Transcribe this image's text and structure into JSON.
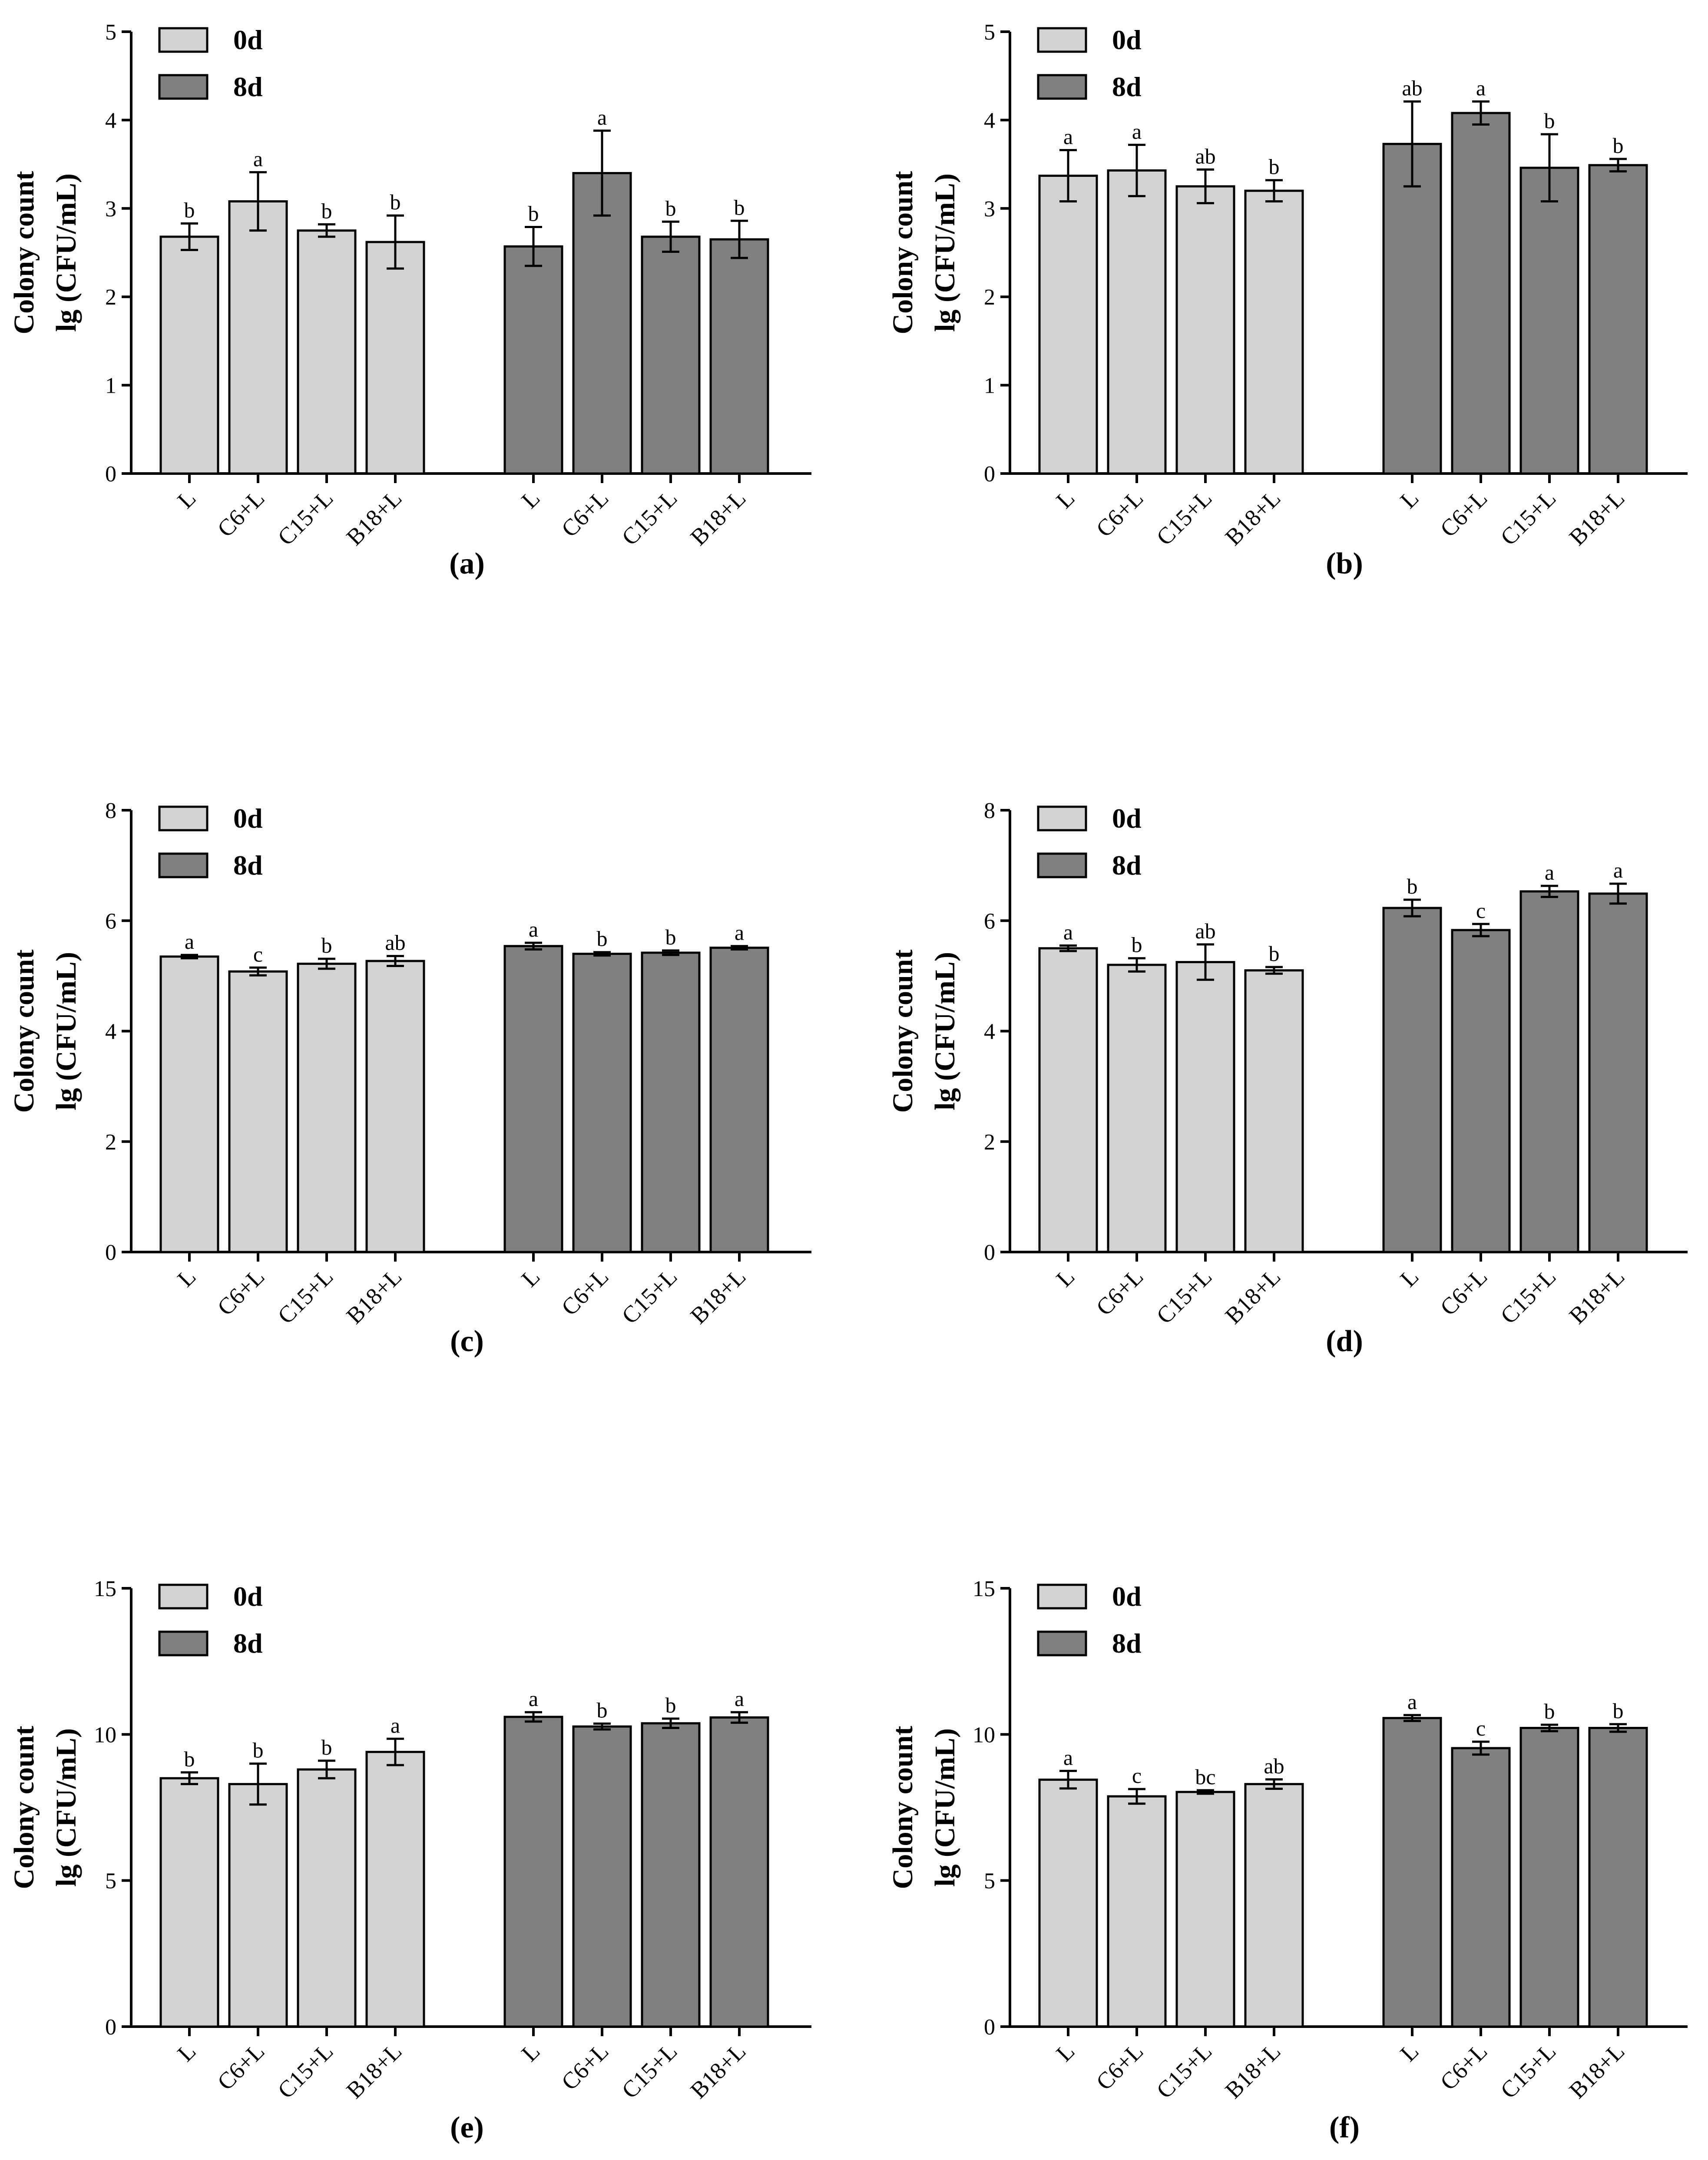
{
  "colors": {
    "day0": "#d3d3d3",
    "day8": "#808080",
    "outline": "#000000"
  },
  "chart_data": [
    {
      "panel": "(a)",
      "type": "bar",
      "ylabel_line1": "Colony count",
      "ylabel_line2": "lg (CFU/mL)",
      "ylim": [
        0,
        5
      ],
      "yticks": [
        "0",
        "1",
        "2",
        "3",
        "4",
        "5"
      ],
      "categories": [
        "L",
        "C6+L",
        "C15+L",
        "B18+L"
      ],
      "legend": [
        "0d",
        "8d"
      ],
      "series": [
        {
          "name": "0d",
          "values": [
            2.68,
            3.08,
            2.75,
            2.62
          ],
          "errors": [
            0.15,
            0.33,
            0.07,
            0.3
          ],
          "labels": [
            "b",
            "a",
            "b",
            "b"
          ]
        },
        {
          "name": "8d",
          "values": [
            2.57,
            3.4,
            2.68,
            2.65
          ],
          "errors": [
            0.22,
            0.48,
            0.17,
            0.21
          ],
          "labels": [
            "b",
            "a",
            "b",
            "b"
          ]
        }
      ]
    },
    {
      "panel": "(b)",
      "type": "bar",
      "ylabel_line1": "Colony count",
      "ylabel_line2": "lg (CFU/mL)",
      "ylim": [
        0,
        5
      ],
      "yticks": [
        "0",
        "1",
        "2",
        "3",
        "4",
        "5"
      ],
      "categories": [
        "L",
        "C6+L",
        "C15+L",
        "B18+L"
      ],
      "legend": [
        "0d",
        "8d"
      ],
      "series": [
        {
          "name": "0d",
          "values": [
            3.37,
            3.43,
            3.25,
            3.2
          ],
          "errors": [
            0.29,
            0.29,
            0.19,
            0.12
          ],
          "labels": [
            "a",
            "a",
            "ab",
            "b"
          ]
        },
        {
          "name": "8d",
          "values": [
            3.73,
            4.08,
            3.46,
            3.49
          ],
          "errors": [
            0.48,
            0.13,
            0.38,
            0.07
          ],
          "labels": [
            "ab",
            "a",
            "b",
            "b"
          ]
        }
      ]
    },
    {
      "panel": "(c)",
      "type": "bar",
      "ylabel_line1": "Colony count",
      "ylabel_line2": "lg (CFU/mL)",
      "ylim": [
        0,
        8
      ],
      "yticks": [
        "0",
        "2",
        "4",
        "6",
        "8"
      ],
      "categories": [
        "L",
        "C6+L",
        "C15+L",
        "B18+L"
      ],
      "legend": [
        "0d",
        "8d"
      ],
      "series": [
        {
          "name": "0d",
          "values": [
            5.35,
            5.08,
            5.22,
            5.27
          ],
          "errors": [
            0.03,
            0.07,
            0.09,
            0.09
          ],
          "labels": [
            "a",
            "c",
            "b",
            "ab"
          ]
        },
        {
          "name": "8d",
          "values": [
            5.54,
            5.4,
            5.42,
            5.51
          ],
          "errors": [
            0.06,
            0.03,
            0.04,
            0.03
          ],
          "labels": [
            "a",
            "b",
            "b",
            "a"
          ]
        }
      ]
    },
    {
      "panel": "(d)",
      "type": "bar",
      "ylabel_line1": "Colony count",
      "ylabel_line2": "lg (CFU/mL)",
      "ylim": [
        0,
        8
      ],
      "yticks": [
        "0",
        "2",
        "4",
        "6",
        "8"
      ],
      "categories": [
        "L",
        "C6+L",
        "C15+L",
        "B18+L"
      ],
      "legend": [
        "0d",
        "8d"
      ],
      "series": [
        {
          "name": "0d",
          "values": [
            5.5,
            5.2,
            5.25,
            5.1
          ],
          "errors": [
            0.05,
            0.12,
            0.32,
            0.06
          ],
          "labels": [
            "a",
            "b",
            "ab",
            "b"
          ]
        },
        {
          "name": "8d",
          "values": [
            6.23,
            5.83,
            6.53,
            6.49
          ],
          "errors": [
            0.15,
            0.11,
            0.1,
            0.18
          ],
          "labels": [
            "b",
            "c",
            "a",
            "a"
          ]
        }
      ]
    },
    {
      "panel": "(e)",
      "type": "bar",
      "ylabel_line1": "Colony count",
      "ylabel_line2": "lg (CFU/mL)",
      "ylim": [
        0,
        15
      ],
      "yticks": [
        "0",
        "5",
        "10",
        "15"
      ],
      "categories": [
        "L",
        "C6+L",
        "C15+L",
        "B18+L"
      ],
      "legend": [
        "0d",
        "8d"
      ],
      "series": [
        {
          "name": "0d",
          "values": [
            8.5,
            8.3,
            8.8,
            9.4
          ],
          "errors": [
            0.2,
            0.7,
            0.3,
            0.45
          ],
          "labels": [
            "b",
            "b",
            "b",
            "a"
          ]
        },
        {
          "name": "8d",
          "values": [
            10.6,
            10.27,
            10.38,
            10.58
          ],
          "errors": [
            0.16,
            0.1,
            0.16,
            0.18
          ],
          "labels": [
            "a",
            "b",
            "b",
            "a"
          ]
        }
      ]
    },
    {
      "panel": "(f)",
      "type": "bar",
      "ylabel_line1": "Colony count",
      "ylabel_line2": "lg (CFU/mL)",
      "ylim": [
        0,
        15
      ],
      "yticks": [
        "0",
        "5",
        "10",
        "15"
      ],
      "categories": [
        "L",
        "C6+L",
        "C15+L",
        "B18+L"
      ],
      "legend": [
        "0d",
        "8d"
      ],
      "series": [
        {
          "name": "0d",
          "values": [
            8.45,
            7.88,
            8.03,
            8.3
          ],
          "errors": [
            0.3,
            0.25,
            0.06,
            0.16
          ],
          "labels": [
            "a",
            "c",
            "bc",
            "ab"
          ]
        },
        {
          "name": "8d",
          "values": [
            10.56,
            9.53,
            10.22,
            10.22
          ],
          "errors": [
            0.1,
            0.22,
            0.11,
            0.13
          ],
          "labels": [
            "a",
            "c",
            "b",
            "b"
          ]
        }
      ]
    }
  ]
}
